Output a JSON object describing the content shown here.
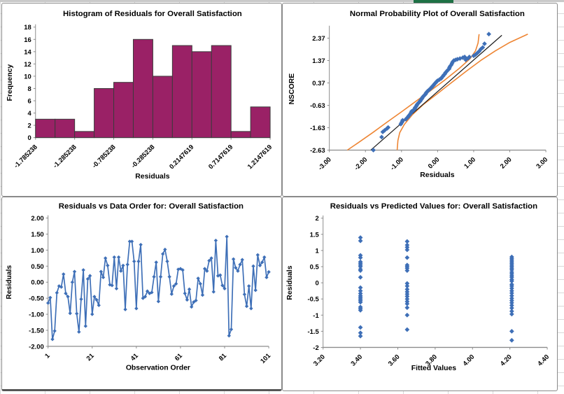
{
  "page": {
    "sheet_gridline_color": "#D9D9D9",
    "top_row_color": "#C9C9C9",
    "green_cell_color": "#1E7145",
    "chart_border_color": "#8A8A8A"
  },
  "chart_data": [
    {
      "id": "histogram",
      "type": "bar",
      "title": "Histogram of Residuals for Overall Satisfaction",
      "xlabel": "Residuals",
      "ylabel": "Frequency",
      "values": [
        3,
        3,
        1,
        8,
        9,
        16,
        10,
        15,
        14,
        15,
        1,
        5
      ],
      "ylim": [
        0,
        18
      ],
      "ytick_labels": [
        "0",
        "2",
        "4",
        "6",
        "8",
        "10",
        "12",
        "14",
        "16",
        "18"
      ],
      "ytick_values": [
        0,
        2,
        4,
        6,
        8,
        10,
        12,
        14,
        16,
        18
      ],
      "xtick_labels": [
        "-1.785238",
        "-1.285238",
        "-0.785238",
        "-0.285238",
        "0.2147619",
        "0.7147619",
        "1.2147619"
      ],
      "bar_color": "#9A2166",
      "bar_border_color": "#3B3B3B",
      "grid": false,
      "legend": "none"
    },
    {
      "id": "normal-probability",
      "type": "scatter",
      "title": "Normal Probability Plot of Overall Satisfaction",
      "xlabel": "Residuals",
      "ylabel": "NSCORE",
      "xlim": [
        -3,
        3
      ],
      "ylim": [
        -2.63,
        2.8
      ],
      "ytick_labels": [
        "2.37",
        "1.37",
        "0.37",
        "-0.63",
        "-1.63",
        "-2.63"
      ],
      "ytick_values": [
        2.37,
        1.37,
        0.37,
        -0.63,
        -1.63,
        -2.63
      ],
      "xtick_labels": [
        "-3.00",
        "-2.00",
        "-1.00",
        "0.00",
        "1.00",
        "2.00",
        "3.00"
      ],
      "xtick_values": [
        -3,
        -2,
        -1,
        0,
        1,
        2,
        3
      ],
      "point_color": "#3E6FB7",
      "fit_line_color": "#1A1A1A",
      "band_color": "#EE8533",
      "fit_line": [
        [
          -1.85,
          -2.63
        ],
        [
          1.78,
          2.5
        ]
      ],
      "band_left": [
        [
          -2.5,
          -2.63
        ],
        [
          -2.2,
          -2.3
        ],
        [
          -1.8,
          -1.85
        ],
        [
          -1.4,
          -1.38
        ],
        [
          -1.0,
          -0.92
        ],
        [
          -0.6,
          -0.45
        ],
        [
          -0.2,
          0.02
        ],
        [
          0.2,
          0.5
        ],
        [
          0.6,
          1.02
        ],
        [
          0.9,
          1.45
        ],
        [
          1.05,
          1.8
        ],
        [
          1.12,
          2.15
        ],
        [
          1.15,
          2.55
        ]
      ],
      "band_right": [
        [
          -1.12,
          -2.63
        ],
        [
          -1.1,
          -2.2
        ],
        [
          -1.05,
          -1.85
        ],
        [
          -0.92,
          -1.48
        ],
        [
          -0.7,
          -1.05
        ],
        [
          -0.4,
          -0.6
        ],
        [
          0.0,
          -0.1
        ],
        [
          0.4,
          0.4
        ],
        [
          0.8,
          0.9
        ],
        [
          1.2,
          1.38
        ],
        [
          1.6,
          1.8
        ],
        [
          2.0,
          2.18
        ],
        [
          2.5,
          2.55
        ]
      ],
      "points": [
        [
          -1.78,
          -2.63
        ],
        [
          -1.55,
          -2.05
        ],
        [
          -1.52,
          -1.82
        ],
        [
          -1.47,
          -1.75
        ],
        [
          -1.4,
          -1.66
        ],
        [
          -1.37,
          -1.62
        ],
        [
          -1.02,
          -1.47
        ],
        [
          -1.0,
          -1.41
        ],
        [
          -0.98,
          -1.36
        ],
        [
          -0.97,
          -1.3
        ],
        [
          -0.88,
          -1.25
        ],
        [
          -0.85,
          -1.2
        ],
        [
          -0.82,
          -1.15
        ],
        [
          -0.8,
          -1.1
        ],
        [
          -0.77,
          -1.05
        ],
        [
          -0.75,
          -1.0
        ],
        [
          -0.73,
          -0.95
        ],
        [
          -0.72,
          -0.9
        ],
        [
          -0.67,
          -0.86
        ],
        [
          -0.65,
          -0.81
        ],
        [
          -0.63,
          -0.77
        ],
        [
          -0.62,
          -0.73
        ],
        [
          -0.6,
          -0.69
        ],
        [
          -0.58,
          -0.64
        ],
        [
          -0.57,
          -0.6
        ],
        [
          -0.55,
          -0.56
        ],
        [
          -0.53,
          -0.52
        ],
        [
          -0.5,
          -0.48
        ],
        [
          -0.48,
          -0.44
        ],
        [
          -0.47,
          -0.4
        ],
        [
          -0.45,
          -0.36
        ],
        [
          -0.43,
          -0.32
        ],
        [
          -0.42,
          -0.28
        ],
        [
          -0.4,
          -0.24
        ],
        [
          -0.38,
          -0.2
        ],
        [
          -0.35,
          -0.16
        ],
        [
          -0.33,
          -0.12
        ],
        [
          -0.32,
          -0.08
        ],
        [
          -0.3,
          -0.04
        ],
        [
          -0.28,
          0.0
        ],
        [
          -0.25,
          0.04
        ],
        [
          -0.22,
          0.08
        ],
        [
          -0.2,
          0.12
        ],
        [
          -0.17,
          0.16
        ],
        [
          -0.15,
          0.21
        ],
        [
          -0.12,
          0.25
        ],
        [
          -0.1,
          0.29
        ],
        [
          -0.08,
          0.34
        ],
        [
          -0.05,
          0.38
        ],
        [
          -0.03,
          0.43
        ],
        [
          0.0,
          0.47
        ],
        [
          0.05,
          0.52
        ],
        [
          0.1,
          0.57
        ],
        [
          0.12,
          0.62
        ],
        [
          0.15,
          0.67
        ],
        [
          0.17,
          0.72
        ],
        [
          0.2,
          0.77
        ],
        [
          0.22,
          0.83
        ],
        [
          0.25,
          0.88
        ],
        [
          0.28,
          0.94
        ],
        [
          0.32,
          1.0
        ],
        [
          0.33,
          1.06
        ],
        [
          0.35,
          1.12
        ],
        [
          0.38,
          1.18
        ],
        [
          0.4,
          1.25
        ],
        [
          0.42,
          1.31
        ],
        [
          0.45,
          1.37
        ],
        [
          0.5,
          1.4
        ],
        [
          0.55,
          1.43
        ],
        [
          0.62,
          1.46
        ],
        [
          0.7,
          1.5
        ],
        [
          0.75,
          1.53
        ],
        [
          0.78,
          1.4
        ],
        [
          0.8,
          1.44
        ],
        [
          0.85,
          1.48
        ],
        [
          0.88,
          1.53
        ],
        [
          1.0,
          1.58
        ],
        [
          1.05,
          1.63
        ],
        [
          1.1,
          1.7
        ],
        [
          1.15,
          1.78
        ],
        [
          1.2,
          1.88
        ],
        [
          1.25,
          1.95
        ],
        [
          1.3,
          2.12
        ],
        [
          1.42,
          2.55
        ]
      ],
      "grid": false,
      "legend": "none"
    },
    {
      "id": "residuals-vs-order",
      "type": "line",
      "title": "Residuals vs Data Order for: Overall Satisfaction",
      "xlabel": "Observation Order",
      "ylabel": "Residuals",
      "xlim": [
        1,
        101
      ],
      "ylim": [
        -2,
        2
      ],
      "ytick_labels": [
        "2.00",
        "1.50",
        "1.00",
        "0.50",
        "0.00",
        "-0.50",
        "-1.00",
        "-1.50",
        "-2.00"
      ],
      "ytick_values": [
        2,
        1.5,
        1,
        0.5,
        0,
        -0.5,
        -1,
        -1.5,
        -2
      ],
      "xtick_labels": [
        "1",
        "21",
        "41",
        "61",
        "81",
        "101"
      ],
      "xtick_values": [
        1,
        21,
        41,
        61,
        81,
        101
      ],
      "line_color": "#3E6FB7",
      "marker": "diamond",
      "series": [
        -0.65,
        -0.48,
        -1.78,
        -1.52,
        -0.33,
        -0.12,
        -0.15,
        0.25,
        -0.35,
        -0.45,
        -0.97,
        0.0,
        0.33,
        -0.98,
        -1.55,
        -0.53,
        0.38,
        -1.37,
        0.1,
        0.2,
        -1.0,
        -0.45,
        -0.55,
        -0.72,
        0.33,
        0.15,
        0.75,
        0.52,
        -0.08,
        -0.1,
        0.78,
        -0.2,
        0.78,
        0.35,
        0.52,
        -0.85,
        0.55,
        1.27,
        1.27,
        0.65,
        -0.82,
        0.65,
        1.17,
        -0.5,
        -0.45,
        -0.28,
        -0.35,
        -0.32,
        0.17,
        0.62,
        -0.6,
        0.17,
        0.88,
        1.02,
        0.65,
        0.17,
        -0.37,
        -0.12,
        -0.05,
        0.4,
        0.42,
        0.38,
        -0.35,
        -0.55,
        -0.22,
        -0.77,
        -0.62,
        -0.57,
        0.12,
        -0.05,
        -0.4,
        0.42,
        0.35,
        0.67,
        0.75,
        -0.3,
        1.3,
        0.2,
        0.22,
        -0.1,
        -0.2,
        1.42,
        -1.67,
        -1.47,
        0.72,
        0.45,
        0.35,
        0.55,
        0.7,
        -0.38,
        -0.75,
        -0.12,
        -0.82,
        0.5,
        -0.25,
        0.85,
        0.52,
        0.62,
        0.78,
        0.15,
        0.32
      ],
      "grid": false,
      "legend": "none"
    },
    {
      "id": "residuals-vs-fitted",
      "type": "scatter",
      "title": "Residuals vs Predicted Values for: Overall Satisfaction",
      "xlabel": "Fitted Values",
      "ylabel": "Residuals",
      "xlim": [
        3.2,
        4.4
      ],
      "ylim": [
        -2,
        2
      ],
      "ytick_labels": [
        "2",
        "1.5",
        "1",
        "0.5",
        "0",
        "-0.5",
        "-1",
        "-1.5",
        "-2"
      ],
      "ytick_values": [
        2,
        1.5,
        1,
        0.5,
        0,
        -0.5,
        -1,
        -1.5,
        -2
      ],
      "xtick_labels": [
        "3.20",
        "3.40",
        "3.60",
        "3.80",
        "4.00",
        "4.20",
        "4.40"
      ],
      "xtick_values": [
        3.2,
        3.4,
        3.6,
        3.8,
        4.0,
        4.2,
        4.4
      ],
      "point_color": "#3E6FB7",
      "clusters": [
        {
          "fitted": 3.4,
          "residuals": [
            1.4,
            1.3,
            0.85,
            0.78,
            0.65,
            0.6,
            0.55,
            0.5,
            0.42,
            0.38,
            0.17,
            -0.15,
            -0.25,
            -0.33,
            -0.4,
            -0.45,
            -0.5,
            -0.55,
            -0.6,
            -0.75,
            -0.8,
            -0.85,
            -1.38,
            -1.55,
            -1.65
          ]
        },
        {
          "fitted": 3.65,
          "residuals": [
            1.28,
            1.17,
            1.1,
            1.02,
            0.78,
            0.55,
            0.5,
            0.45,
            0.38,
            -0.02,
            -0.1,
            -0.2,
            -0.28,
            -0.35,
            -0.42,
            -0.5,
            -0.58,
            -0.65,
            -0.77,
            -1.0,
            -1.45
          ]
        },
        {
          "fitted": 4.21,
          "residuals": [
            0.8,
            0.75,
            0.7,
            0.65,
            0.6,
            0.55,
            0.5,
            0.45,
            0.4,
            0.33,
            0.28,
            0.22,
            0.17,
            0.1,
            0.05,
            -0.05,
            -0.1,
            -0.17,
            -0.25,
            -0.32,
            -0.4,
            -0.48,
            -0.55,
            -0.62,
            -0.7,
            -0.78,
            -0.88,
            -0.97,
            -1.5,
            -1.78
          ]
        }
      ],
      "grid": false,
      "legend": "none"
    }
  ]
}
